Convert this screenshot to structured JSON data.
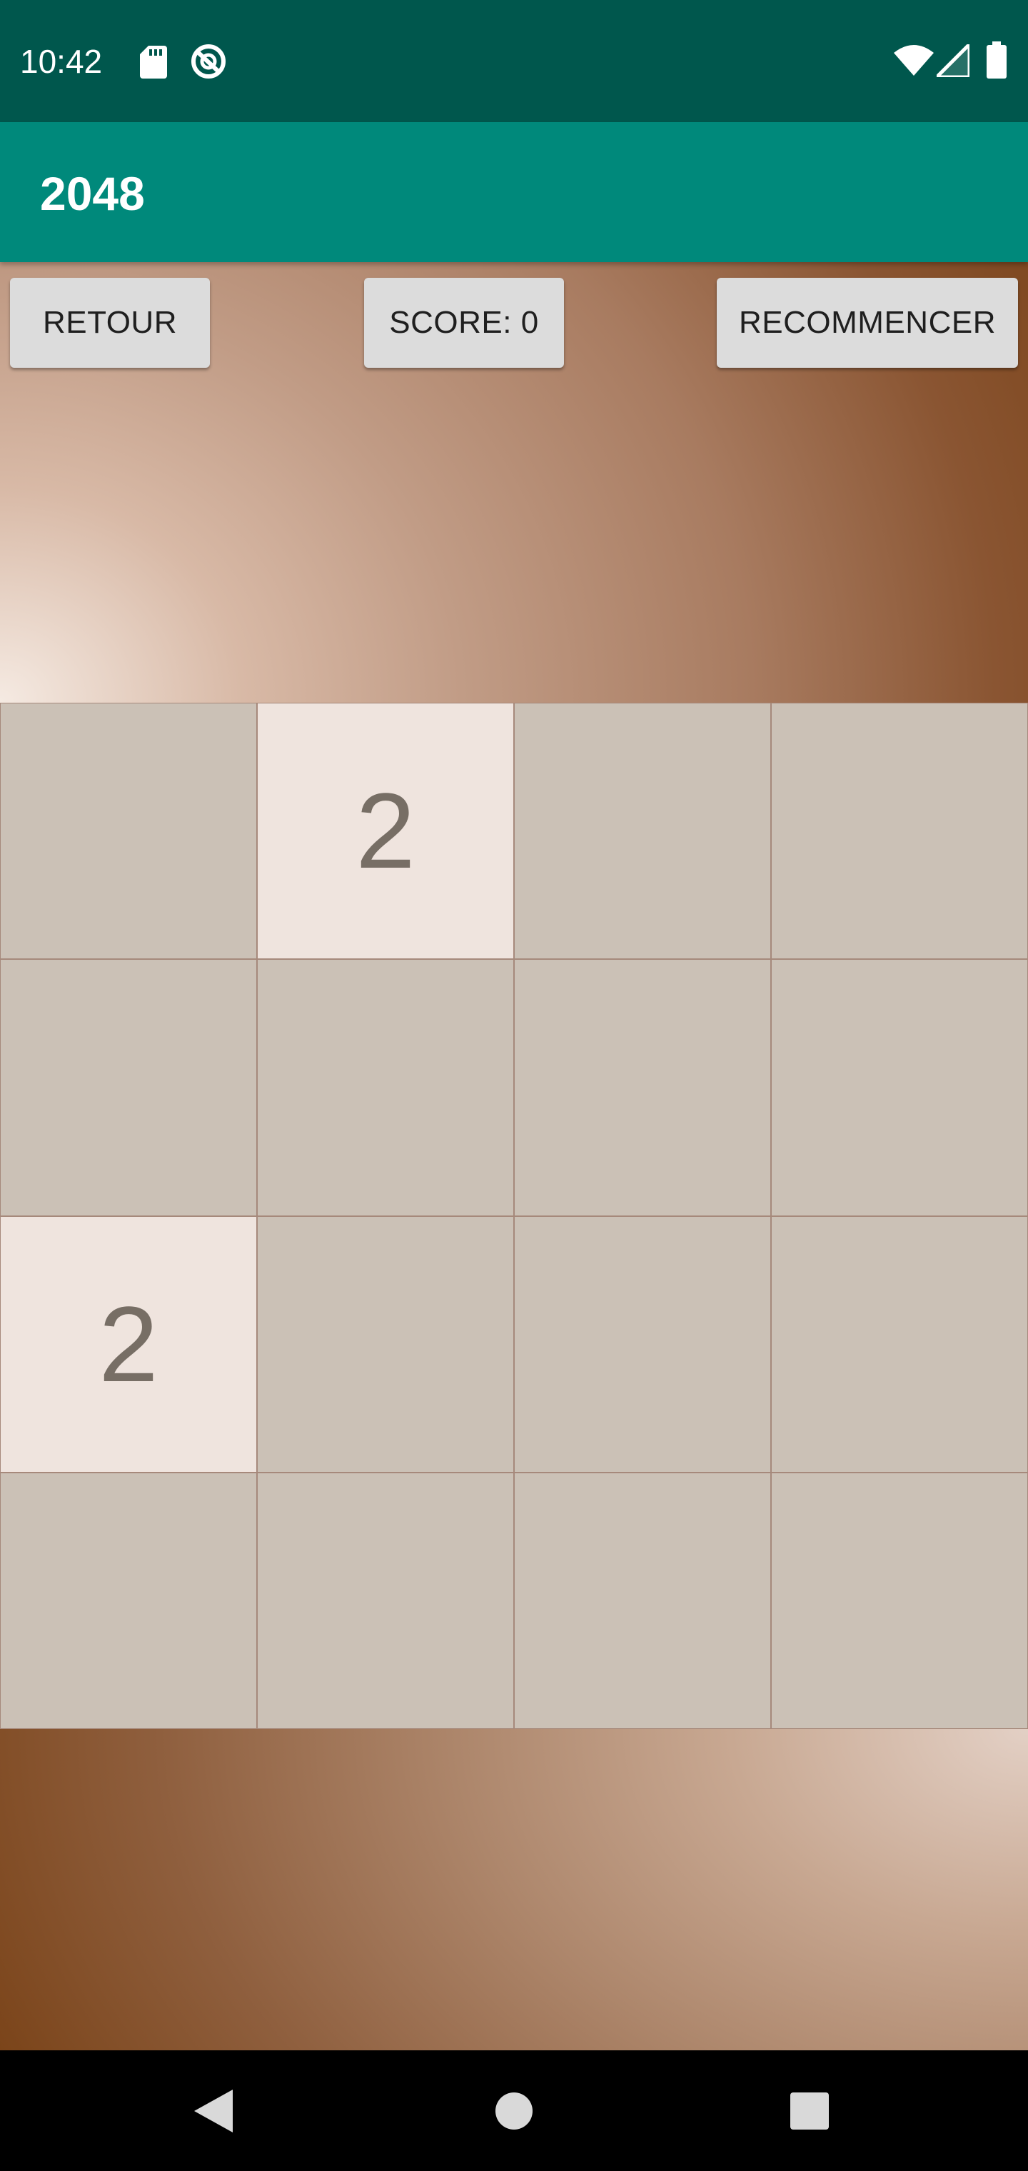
{
  "status_bar": {
    "time": "10:42",
    "left_icons": [
      "sd-card-icon",
      "data-saver-icon"
    ],
    "right_icons": [
      "wifi-icon",
      "cell-signal-icon",
      "battery-icon"
    ],
    "background_color": "#00574d"
  },
  "app_bar": {
    "title": "2048",
    "background_color": "#00897b"
  },
  "controls": {
    "back_label": "RETOUR",
    "score_label": "SCORE: 0",
    "restart_label": "RECOMMENCER"
  },
  "board": {
    "rows": [
      [
        "",
        "2",
        "",
        ""
      ],
      [
        "",
        "",
        "",
        ""
      ],
      [
        "2",
        "",
        "",
        ""
      ],
      [
        "",
        "",
        "",
        ""
      ]
    ],
    "empty_tile_color": "#cbc1b6",
    "tile_2_color": "#efe4de",
    "text_color": "#776e65"
  },
  "nav_bar": {
    "icons": [
      "back-icon",
      "home-icon",
      "recents-icon"
    ]
  }
}
